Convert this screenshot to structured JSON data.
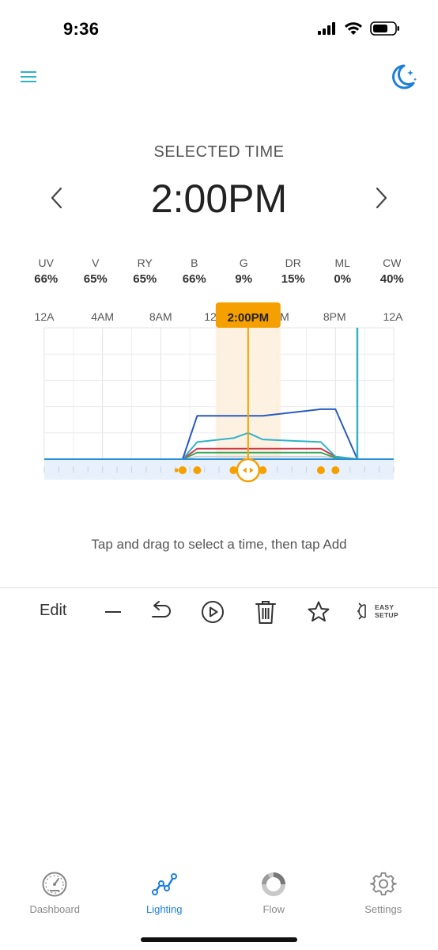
{
  "status": {
    "time": "9:36"
  },
  "selected": {
    "label": "SELECTED TIME",
    "time": "2:00PM"
  },
  "channels": [
    {
      "name": "UV",
      "value": "66%"
    },
    {
      "name": "V",
      "value": "65%"
    },
    {
      "name": "RY",
      "value": "65%"
    },
    {
      "name": "B",
      "value": "66%"
    },
    {
      "name": "G",
      "value": "9%"
    },
    {
      "name": "DR",
      "value": "15%"
    },
    {
      "name": "ML",
      "value": "0%"
    },
    {
      "name": "CW",
      "value": "40%"
    }
  ],
  "chart": {
    "hour_labels": [
      "12A",
      "4AM",
      "8AM",
      "12",
      "M",
      "8PM",
      "12A"
    ],
    "badge": "2:00PM",
    "selected_hour": 14,
    "end_marker_hour": 21.5,
    "point_hours": [
      9.5,
      10.5,
      13,
      15,
      19,
      20
    ]
  },
  "chart_data": {
    "type": "line",
    "x_unit": "hour",
    "xlim": [
      0,
      24
    ],
    "ylim": [
      0,
      100
    ],
    "grid": true,
    "series": [
      {
        "color": "#2a5bbd",
        "points": [
          [
            0,
            0
          ],
          [
            9.5,
            0
          ],
          [
            10.5,
            33
          ],
          [
            13,
            33
          ],
          [
            15,
            33
          ],
          [
            19,
            38
          ],
          [
            20,
            38
          ],
          [
            21.5,
            0
          ],
          [
            24,
            0
          ]
        ]
      },
      {
        "color": "#2eb3c9",
        "points": [
          [
            0,
            0
          ],
          [
            9.5,
            0
          ],
          [
            10.5,
            13
          ],
          [
            13,
            16
          ],
          [
            14,
            20
          ],
          [
            15,
            15
          ],
          [
            19,
            13
          ],
          [
            20,
            2
          ],
          [
            21.5,
            0
          ],
          [
            24,
            0
          ]
        ]
      },
      {
        "color": "#d0394a",
        "points": [
          [
            0,
            0
          ],
          [
            9.5,
            0
          ],
          [
            10.5,
            8
          ],
          [
            19,
            8
          ],
          [
            20,
            2
          ],
          [
            21.5,
            0
          ],
          [
            24,
            0
          ]
        ]
      },
      {
        "color": "#3aa65a",
        "points": [
          [
            0,
            0
          ],
          [
            9.5,
            0
          ],
          [
            10.5,
            5
          ],
          [
            19,
            5
          ],
          [
            20,
            1
          ],
          [
            21.5,
            0
          ],
          [
            24,
            0
          ]
        ]
      },
      {
        "color": "#c9d0d6",
        "points": [
          [
            0,
            0
          ],
          [
            9.5,
            0
          ],
          [
            10.5,
            2
          ],
          [
            19,
            2
          ],
          [
            20,
            1
          ],
          [
            21.5,
            0
          ],
          [
            24,
            0
          ]
        ]
      }
    ]
  },
  "hint": "Tap and drag to select a time, then tap Add",
  "toolbar": {
    "edit": "Edit",
    "easy_line1": "EASY",
    "easy_line2": "SETUP"
  },
  "tabs": [
    {
      "label": "Dashboard",
      "active": false
    },
    {
      "label": "Lighting",
      "active": true
    },
    {
      "label": "Flow",
      "active": false
    },
    {
      "label": "Settings",
      "active": false
    }
  ],
  "colors": {
    "accent": "#1e7fd8",
    "teal": "#2eb3c9",
    "orange": "#f5a000"
  }
}
